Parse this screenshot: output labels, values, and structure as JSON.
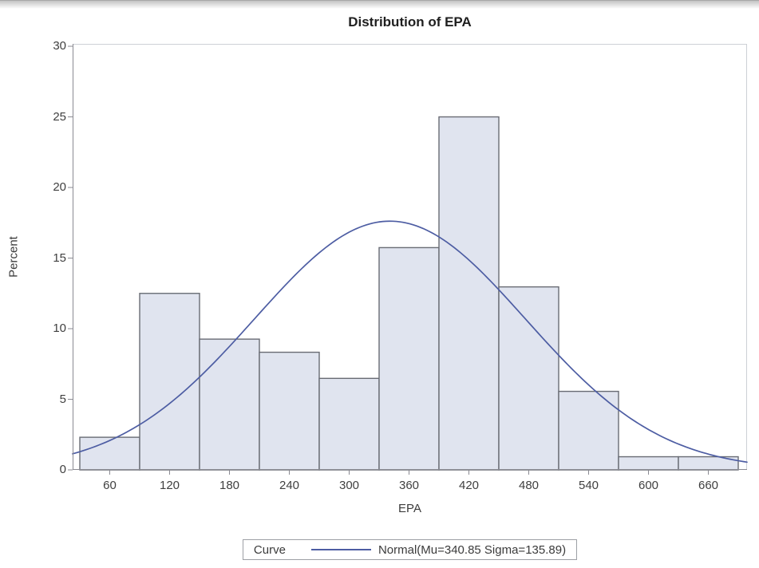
{
  "page": {
    "title": "Distribution of EPA"
  },
  "chart_data": {
    "type": "bar",
    "subtype": "histogram-with-normal-curve",
    "title": "Distribution of EPA",
    "xlabel": "EPA",
    "ylabel": "Percent",
    "bin_width": 60,
    "categories": [
      60,
      120,
      180,
      240,
      300,
      360,
      420,
      480,
      540,
      600,
      660
    ],
    "values": [
      2.31,
      12.5,
      9.26,
      8.33,
      6.48,
      15.74,
      25.0,
      12.96,
      5.56,
      0.93,
      0.93
    ],
    "x_ticks": [
      60,
      120,
      180,
      240,
      300,
      360,
      420,
      480,
      540,
      600,
      660
    ],
    "y_ticks": [
      0,
      5,
      10,
      15,
      20,
      25,
      30
    ],
    "xlim": [
      22.8,
      698.8
    ],
    "ylim": [
      0,
      30.17
    ],
    "grid": false,
    "curve": {
      "type": "normal",
      "mu": 340.85,
      "sigma": 135.89
    },
    "legend": {
      "position": "bottom",
      "title": "Curve",
      "entry": "Normal(Mu=340.85 Sigma=135.89)"
    },
    "colors": {
      "bar_fill": "#e0e4ef",
      "bar_stroke": "#696c74",
      "curve": "#4d5da3",
      "axis_line": "#8a8a92",
      "frame": "#cdd0d6",
      "text": "#3b3b3b"
    }
  }
}
